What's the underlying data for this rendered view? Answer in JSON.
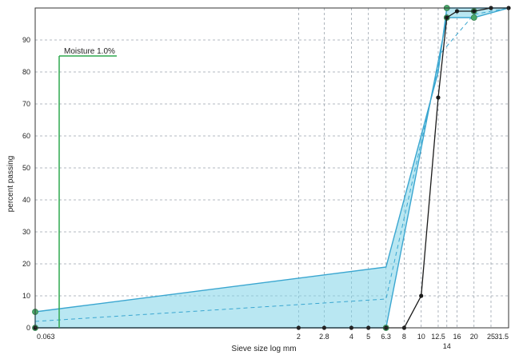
{
  "chart_data": {
    "type": "line",
    "xlabel": "Sieve size log mm",
    "ylabel": "percent passing",
    "x_scale": "log",
    "xlim": [
      0.063,
      31.5
    ],
    "ylim": [
      0,
      100
    ],
    "x_ticks": [
      "0.063",
      "2",
      "2.8",
      "4",
      "5",
      "6.3",
      "8",
      "10",
      "12.5",
      "14",
      "16",
      "20",
      "25",
      "31.5"
    ],
    "y_ticks": [
      0,
      10,
      20,
      30,
      40,
      50,
      60,
      70,
      80,
      90
    ],
    "grid": true,
    "annotations": [
      {
        "text": "Moisture 1.0%",
        "x": 0.063,
        "y": 87
      }
    ],
    "envelope": {
      "upper": [
        [
          0.063,
          5
        ],
        [
          6.3,
          19
        ],
        [
          12.5,
          80
        ],
        [
          14,
          100
        ],
        [
          31.5,
          100
        ]
      ],
      "lower": [
        [
          0.063,
          0
        ],
        [
          6.3,
          0
        ],
        [
          14,
          97
        ],
        [
          20,
          97
        ],
        [
          31.5,
          100
        ]
      ],
      "color": "#7fd3e8"
    },
    "series": [
      {
        "color": "#1a1a1a",
        "x": [
          0.063,
          2,
          2.8,
          4,
          5,
          6.3,
          8,
          10,
          12.5,
          14,
          16,
          20,
          25,
          31.5
        ],
        "y": [
          0,
          0,
          0,
          0,
          0,
          0,
          0,
          10,
          72,
          97,
          99,
          99,
          100,
          100
        ]
      }
    ]
  }
}
